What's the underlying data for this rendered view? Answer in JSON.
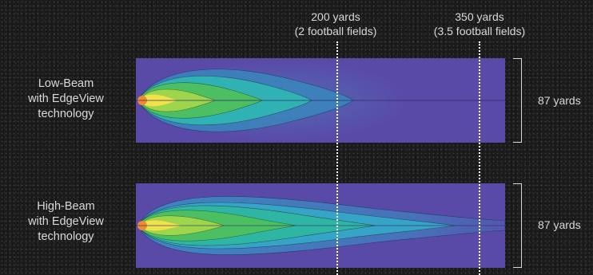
{
  "markers": [
    {
      "line1": "200 yards",
      "line2": "(2 football fields)"
    },
    {
      "line1": "350 yards",
      "line2": "(3.5 football fields)"
    }
  ],
  "beams": [
    {
      "line1": "Low-Beam",
      "line2": "with EdgeView",
      "line3": "technology",
      "width_label": "87 yards"
    },
    {
      "line1": "High-Beam",
      "line2": "with EdgeView",
      "line3": "technology",
      "width_label": "87 yards"
    }
  ],
  "colors": {
    "field": "#5a4aa8",
    "hot": "#f5e24a",
    "warm": "#4fc15a",
    "mid": "#2fb7b3",
    "cool": "#3b6fb8"
  }
}
